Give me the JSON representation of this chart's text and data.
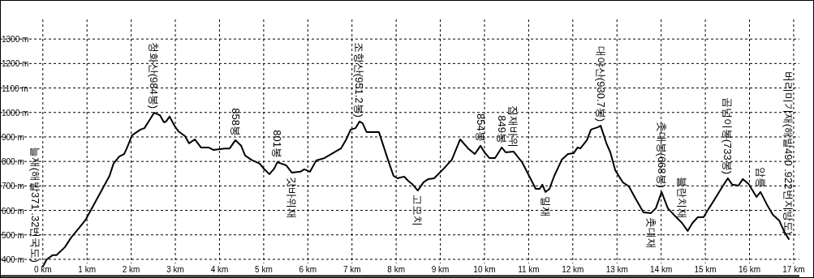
{
  "chart_data": {
    "type": "line",
    "color": "#000000",
    "line_style": "solid",
    "grid": true,
    "xlim": [
      -0.97,
      17.13
    ],
    "ylim": [
      332,
      1380
    ],
    "xticks": [
      {
        "value": 0,
        "label": "0 km"
      },
      {
        "value": 1,
        "label": "1 km"
      },
      {
        "value": 2,
        "label": "2 km"
      },
      {
        "value": 3,
        "label": "3 km"
      },
      {
        "value": 4,
        "label": "4 km"
      },
      {
        "value": 5,
        "label": "5 km"
      },
      {
        "value": 6,
        "label": "6 km"
      },
      {
        "value": 7,
        "label": "7 km"
      },
      {
        "value": 8,
        "label": "8 km"
      },
      {
        "value": 9,
        "label": "9 km"
      },
      {
        "value": 10,
        "label": "10 km"
      },
      {
        "value": 11,
        "label": "11 km"
      },
      {
        "value": 12,
        "label": "12 km"
      },
      {
        "value": 13,
        "label": "13 km"
      },
      {
        "value": 14,
        "label": "14 km"
      },
      {
        "value": 15,
        "label": "15 km"
      },
      {
        "value": 16,
        "label": "16 km"
      },
      {
        "value": 17,
        "label": "17 km"
      }
    ],
    "yticks": [
      {
        "value": 400,
        "label": "400 m"
      },
      {
        "value": 500,
        "label": "500 m"
      },
      {
        "value": 600,
        "label": "600 m"
      },
      {
        "value": 700,
        "label": "700 m"
      },
      {
        "value": 800,
        "label": "800 m"
      },
      {
        "value": 900,
        "label": "900 m"
      },
      {
        "value": 1000,
        "label": "1000 m"
      },
      {
        "value": 1100,
        "label": "1100 m"
      },
      {
        "value": 1200,
        "label": "1200 m"
      },
      {
        "value": 1300,
        "label": "1300 m"
      }
    ],
    "x": [
      0,
      0.09,
      0.22,
      0.31,
      0.5,
      0.64,
      0.81,
      0.96,
      1.1,
      1.23,
      1.38,
      1.51,
      1.6,
      1.73,
      1.84,
      1.91,
      2.02,
      2.21,
      2.3,
      2.43,
      2.52,
      2.65,
      2.74,
      2.79,
      2.87,
      2.98,
      3.07,
      3.22,
      3.31,
      3.44,
      3.58,
      3.75,
      3.86,
      4.12,
      4.23,
      4.36,
      4.49,
      4.58,
      4.72,
      4.91,
      5.0,
      5.13,
      5.24,
      5.31,
      5.51,
      5.64,
      5.83,
      5.92,
      6.05,
      6.19,
      6.38,
      6.6,
      6.75,
      6.87,
      6.97,
      7.08,
      7.17,
      7.24,
      7.33,
      7.61,
      7.79,
      7.94,
      8.03,
      8.18,
      8.27,
      8.36,
      8.49,
      8.62,
      8.73,
      8.86,
      9.08,
      9.26,
      9.45,
      9.63,
      9.78,
      9.91,
      10.0,
      10.11,
      10.24,
      10.39,
      10.48,
      10.66,
      10.85,
      11.01,
      11.16,
      11.25,
      11.31,
      11.38,
      11.47,
      11.58,
      11.75,
      11.89,
      12.02,
      12.11,
      12.17,
      12.32,
      12.41,
      12.57,
      12.63,
      12.76,
      12.85,
      12.96,
      13.13,
      13.27,
      13.42,
      13.6,
      13.77,
      13.88,
      14.01,
      14.15,
      14.32,
      14.47,
      14.6,
      14.71,
      14.83,
      14.96,
      15.07,
      15.2,
      15.39,
      15.51,
      15.61,
      15.75,
      15.85,
      15.98,
      16.07,
      16.16,
      16.25,
      16.4,
      16.53,
      16.67,
      16.8,
      16.89
    ],
    "values": [
      371,
      400,
      417,
      417,
      450,
      489,
      526,
      559,
      605,
      648,
      698,
      741,
      791,
      820,
      830,
      857,
      907,
      930,
      936,
      973,
      999,
      989,
      960,
      963,
      983,
      946,
      923,
      903,
      874,
      890,
      857,
      857,
      847,
      853,
      853,
      887,
      864,
      824,
      807,
      791,
      771,
      748,
      771,
      797,
      784,
      754,
      758,
      768,
      758,
      804,
      814,
      837,
      853,
      890,
      930,
      936,
      963,
      956,
      920,
      920,
      820,
      741,
      731,
      738,
      721,
      708,
      681,
      715,
      728,
      731,
      771,
      807,
      890,
      853,
      830,
      864,
      837,
      814,
      814,
      857,
      837,
      840,
      797,
      741,
      688,
      688,
      705,
      675,
      688,
      741,
      807,
      830,
      834,
      857,
      853,
      887,
      930,
      940,
      946,
      874,
      837,
      764,
      715,
      698,
      648,
      592,
      589,
      609,
      675,
      609,
      576,
      549,
      516,
      549,
      572,
      572,
      605,
      642,
      698,
      731,
      705,
      701,
      728,
      708,
      681,
      655,
      675,
      622,
      582,
      559,
      509,
      483
    ],
    "annotations": [
      {
        "text": "늘재(해발371 .32번국도)",
        "x": 0,
        "y": 371
      },
      {
        "text": "청화산(984봉)",
        "x": 2.52,
        "y": 999
      },
      {
        "text": "858봉",
        "x": 4.36,
        "y": 887
      },
      {
        "text": "801봉",
        "x": 5.31,
        "y": 797
      },
      {
        "text": "갓바위재",
        "x": 5.64,
        "y": 754
      },
      {
        "text": "조항산(951.2봉)",
        "x": 7.17,
        "y": 963
      },
      {
        "text": "고모치",
        "x": 8.49,
        "y": 681
      },
      {
        "text": "854봉",
        "x": 9.91,
        "y": 864
      },
      {
        "text": "849봉",
        "x": 10.39,
        "y": 857
      },
      {
        "text": "집재바위",
        "x": 10.66,
        "y": 840
      },
      {
        "text": "밀재",
        "x": 11.38,
        "y": 675
      },
      {
        "text": "대야산(930.7봉)",
        "x": 12.63,
        "y": 946
      },
      {
        "text": "촛대봉(668봉)",
        "x": 14.01,
        "y": 675
      },
      {
        "text": "촛대재",
        "x": 13.77,
        "y": 589
      },
      {
        "text": "블란치재",
        "x": 14.47,
        "y": 549
      },
      {
        "text": "곰넘이봉(733봉)",
        "x": 15.51,
        "y": 731
      },
      {
        "text": "암릉",
        "x": 16.25,
        "y": 675
      },
      {
        "text": "버리미기재(해발490 .922번지방도)",
        "x": 16.89,
        "y": 483
      }
    ]
  }
}
